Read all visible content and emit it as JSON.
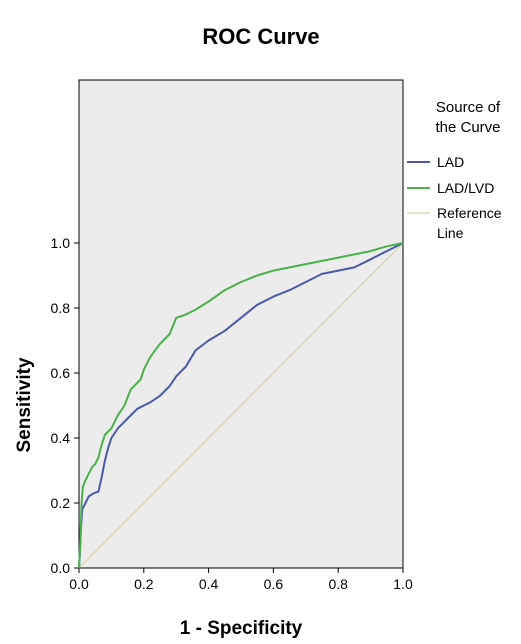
{
  "chart_data": {
    "type": "line",
    "title": "ROC Curve",
    "xlabel": "1 - Specificity",
    "ylabel": "Sensitivity",
    "xlim": [
      0,
      1
    ],
    "ylim": [
      0,
      1
    ],
    "x_ticks": [
      "0.0",
      "0.2",
      "0.4",
      "0.6",
      "0.8",
      "1.0"
    ],
    "y_ticks": [
      "0.0",
      "0.2",
      "0.4",
      "0.6",
      "0.8",
      "1.0"
    ],
    "plot_background": "#ececec",
    "grid": false,
    "legend": {
      "title_lines": [
        "Source of",
        "the Curve"
      ],
      "placement": "right"
    },
    "series": [
      {
        "name": "LAD",
        "color": "#4a5aa8",
        "points": [
          [
            0.0,
            0.0
          ],
          [
            0.003,
            0.05
          ],
          [
            0.006,
            0.12
          ],
          [
            0.01,
            0.18
          ],
          [
            0.02,
            0.2
          ],
          [
            0.03,
            0.22
          ],
          [
            0.045,
            0.23
          ],
          [
            0.06,
            0.235
          ],
          [
            0.07,
            0.28
          ],
          [
            0.08,
            0.33
          ],
          [
            0.09,
            0.37
          ],
          [
            0.1,
            0.4
          ],
          [
            0.12,
            0.43
          ],
          [
            0.15,
            0.46
          ],
          [
            0.18,
            0.49
          ],
          [
            0.2,
            0.5
          ],
          [
            0.22,
            0.51
          ],
          [
            0.25,
            0.53
          ],
          [
            0.28,
            0.56
          ],
          [
            0.3,
            0.59
          ],
          [
            0.33,
            0.62
          ],
          [
            0.36,
            0.67
          ],
          [
            0.4,
            0.7
          ],
          [
            0.45,
            0.73
          ],
          [
            0.5,
            0.77
          ],
          [
            0.55,
            0.81
          ],
          [
            0.6,
            0.835
          ],
          [
            0.65,
            0.855
          ],
          [
            0.7,
            0.88
          ],
          [
            0.75,
            0.905
          ],
          [
            0.8,
            0.915
          ],
          [
            0.85,
            0.925
          ],
          [
            0.9,
            0.95
          ],
          [
            0.95,
            0.975
          ],
          [
            1.0,
            1.0
          ]
        ]
      },
      {
        "name": "LAD/LVD",
        "color": "#4caf4c",
        "points": [
          [
            0.0,
            0.0
          ],
          [
            0.004,
            0.08
          ],
          [
            0.008,
            0.2
          ],
          [
            0.012,
            0.25
          ],
          [
            0.02,
            0.27
          ],
          [
            0.03,
            0.29
          ],
          [
            0.04,
            0.31
          ],
          [
            0.05,
            0.32
          ],
          [
            0.06,
            0.34
          ],
          [
            0.07,
            0.38
          ],
          [
            0.08,
            0.41
          ],
          [
            0.1,
            0.43
          ],
          [
            0.12,
            0.47
          ],
          [
            0.14,
            0.5
          ],
          [
            0.16,
            0.55
          ],
          [
            0.19,
            0.58
          ],
          [
            0.2,
            0.61
          ],
          [
            0.22,
            0.65
          ],
          [
            0.25,
            0.69
          ],
          [
            0.28,
            0.72
          ],
          [
            0.3,
            0.77
          ],
          [
            0.33,
            0.78
          ],
          [
            0.36,
            0.795
          ],
          [
            0.4,
            0.82
          ],
          [
            0.45,
            0.855
          ],
          [
            0.5,
            0.88
          ],
          [
            0.55,
            0.9
          ],
          [
            0.6,
            0.915
          ],
          [
            0.65,
            0.925
          ],
          [
            0.7,
            0.935
          ],
          [
            0.75,
            0.945
          ],
          [
            0.8,
            0.955
          ],
          [
            0.85,
            0.965
          ],
          [
            0.9,
            0.975
          ],
          [
            0.95,
            0.99
          ],
          [
            1.0,
            1.0
          ]
        ]
      },
      {
        "name": "Reference Line",
        "label_lines": [
          "Reference",
          "Line"
        ],
        "color": "#d8d2a8",
        "points": [
          [
            0.0,
            0.0
          ],
          [
            1.0,
            1.0
          ]
        ]
      }
    ]
  }
}
